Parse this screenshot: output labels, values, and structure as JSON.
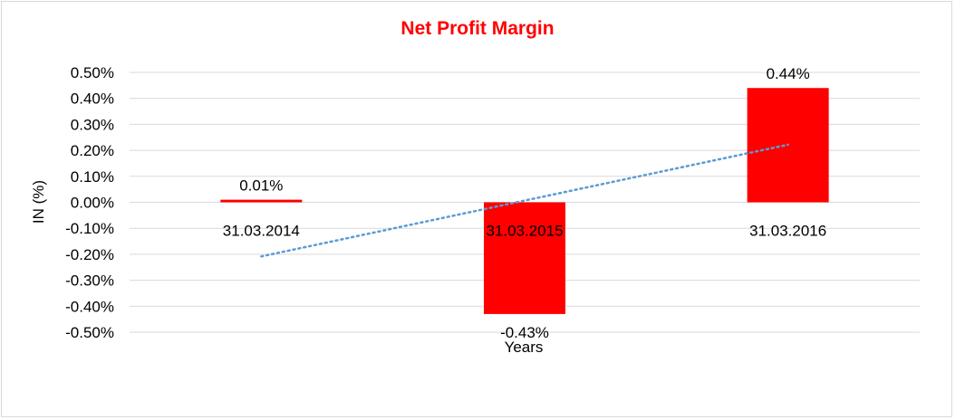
{
  "chart_data": {
    "type": "bar",
    "title": "Net Profit Margin",
    "xlabel": "Years",
    "ylabel": "IN (%)",
    "categories": [
      "31.03.2014",
      "31.03.2015",
      "31.03.2016"
    ],
    "values": [
      0.01,
      -0.43,
      0.44
    ],
    "data_labels": [
      "0.01%",
      "-0.43%",
      "0.44%"
    ],
    "ylim": [
      -0.5,
      0.5
    ],
    "yticks": [
      0.5,
      0.4,
      0.3,
      0.2,
      0.1,
      0.0,
      -0.1,
      -0.2,
      -0.3,
      -0.4,
      -0.5
    ],
    "ytick_labels": [
      "0.50%",
      "0.40%",
      "0.30%",
      "0.20%",
      "0.10%",
      "0.00%",
      "-0.10%",
      "-0.20%",
      "-0.30%",
      "-0.40%",
      "-0.50%"
    ],
    "grid": true,
    "trendline": "linear",
    "colors": {
      "bar": "#ff0000",
      "title": "#ff0000",
      "trendline": "#5b9bd5",
      "grid": "#d9d9d9"
    }
  }
}
